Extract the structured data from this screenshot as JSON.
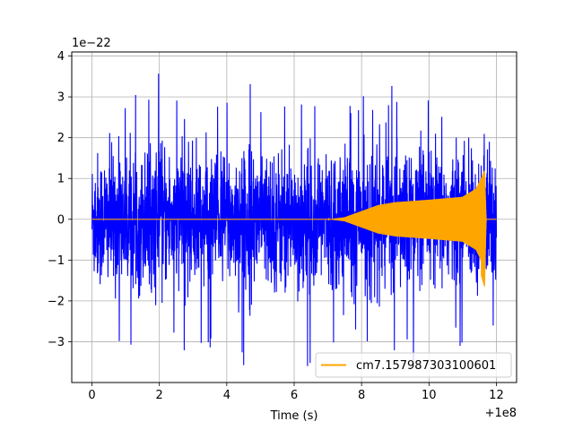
{
  "chart_data": {
    "type": "line",
    "title": "",
    "xlabel": "Time (s)",
    "ylabel": "",
    "x_offset_label": "+1e8",
    "y_scale_label": "1e−22",
    "xlim": [
      -0.6,
      12.6
    ],
    "ylim": [
      -4.0,
      4.1
    ],
    "x_ticks": [
      0,
      2,
      4,
      6,
      8,
      10,
      12
    ],
    "x_tick_labels": [
      "0",
      "2",
      "4",
      "6",
      "8",
      "10",
      "12"
    ],
    "y_ticks": [
      -3,
      -2,
      -1,
      0,
      1,
      2,
      3,
      4
    ],
    "y_tick_labels": [
      "−3",
      "−2",
      "−1",
      "0",
      "1",
      "2",
      "3",
      "4"
    ],
    "grid": true,
    "legend_position": "bottom-right",
    "series": [
      {
        "name": "",
        "color": "#0000ff",
        "kind": "noise",
        "x_range": [
          0.0,
          12.0
        ],
        "rms": 0.8,
        "max": 3.6,
        "min": -3.6
      },
      {
        "name": "cm7.157987303100601",
        "color": "#ffa500",
        "kind": "chirp",
        "x_range": [
          0.0,
          12.0
        ],
        "onset": 7.0,
        "merger": 11.65,
        "peak_positive": 1.2,
        "peak_negative": -1.65,
        "envelope": [
          [
            0.0,
            0.0
          ],
          [
            7.0,
            0.0
          ],
          [
            7.5,
            0.05
          ],
          [
            8.0,
            0.2
          ],
          [
            8.5,
            0.35
          ],
          [
            9.0,
            0.42
          ],
          [
            10.0,
            0.48
          ],
          [
            11.0,
            0.55
          ],
          [
            11.4,
            0.75
          ],
          [
            11.55,
            1.0
          ],
          [
            11.65,
            1.2
          ],
          [
            11.7,
            0.0
          ],
          [
            12.0,
            0.0
          ]
        ]
      }
    ]
  }
}
